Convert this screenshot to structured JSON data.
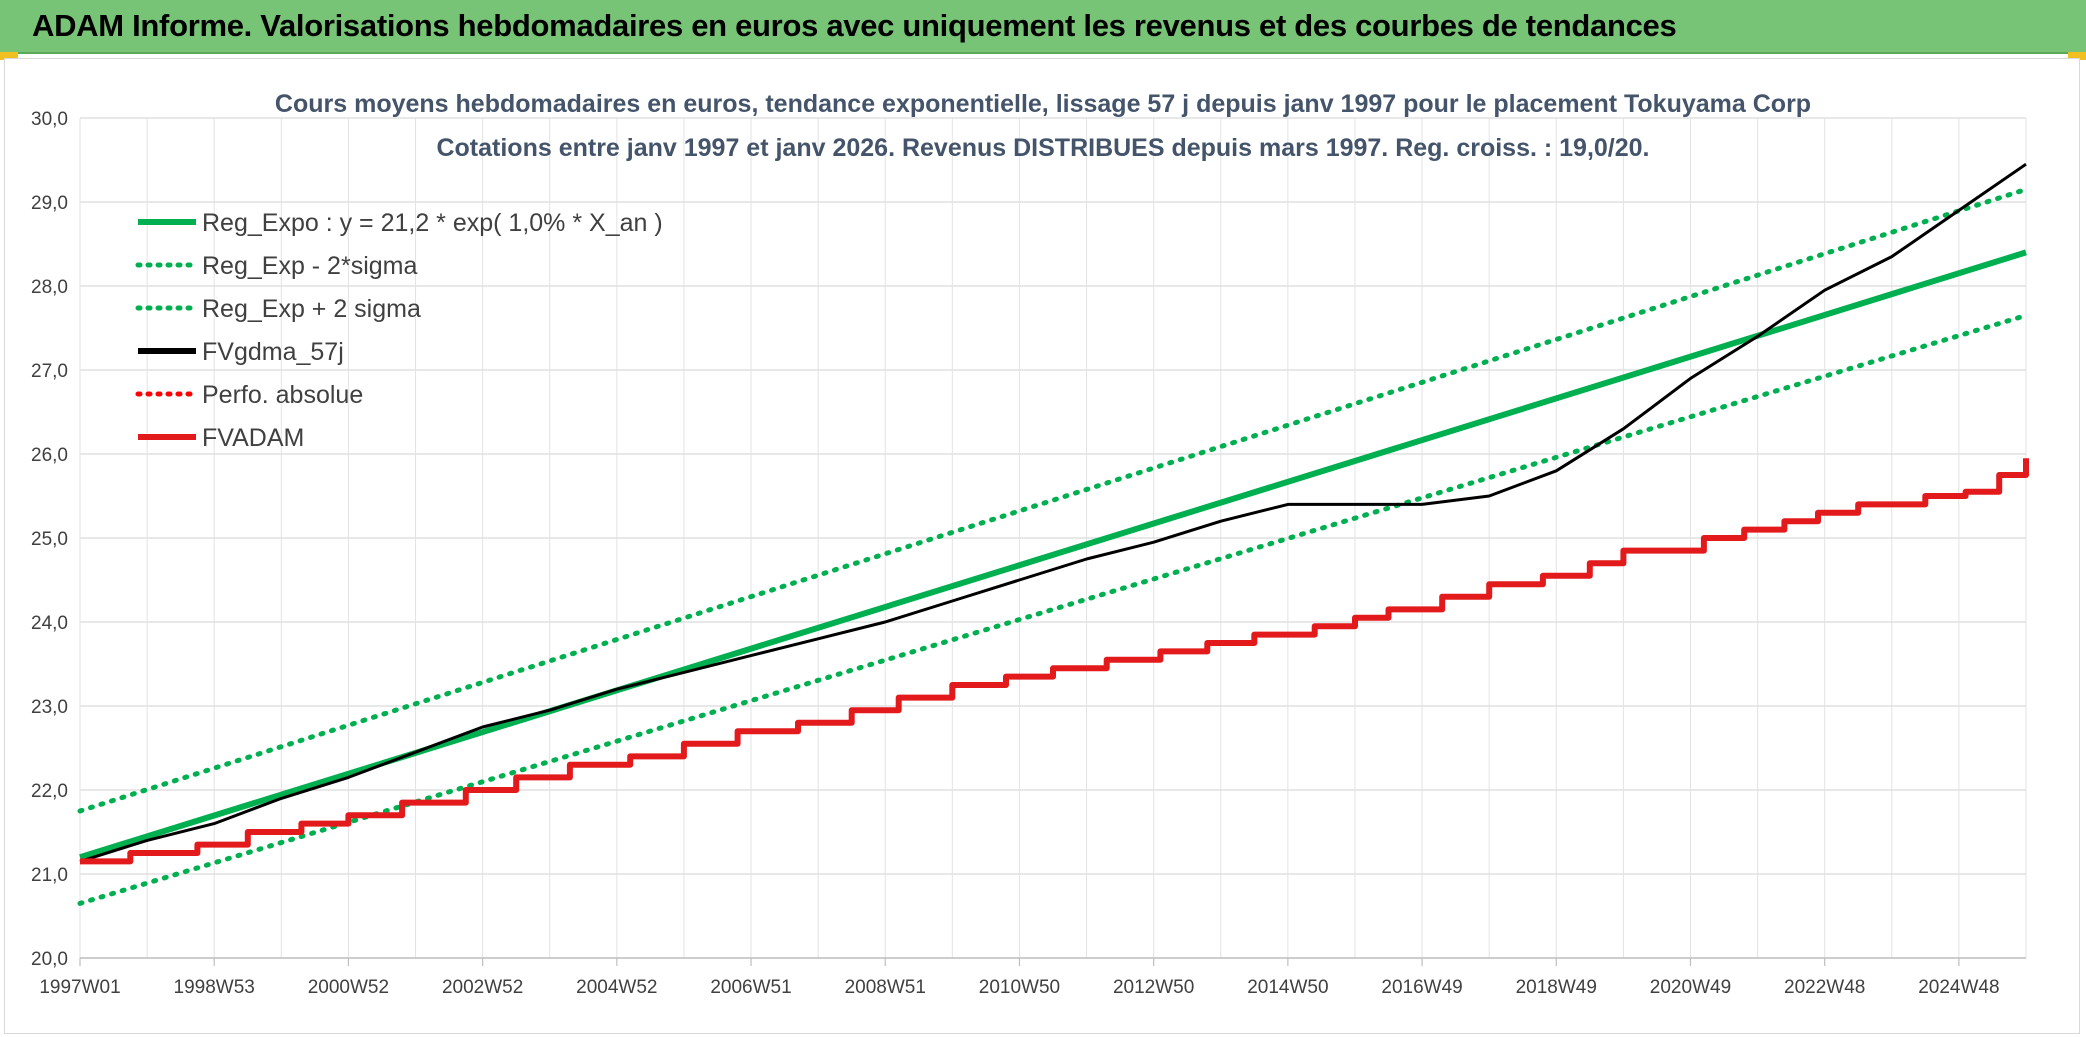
{
  "banner": {
    "title": "ADAM Informe. Valorisations hebdomadaires en euros avec uniquement les revenus et des courbes de tendances"
  },
  "chart_data": {
    "type": "line",
    "title_line1": "Cours moyens hebdomadaires en euros, tendance exponentielle, lissage 57 j depuis janv 1997 pour le placement Tokuyama Corp",
    "title_line2": "Cotations entre janv 1997 et janv 2026. Revenus DISTRIBUES depuis mars 1997. Reg. croiss. : 19,0/20.",
    "ylim": [
      20,
      30
    ],
    "yticks": [
      "20,0",
      "21,0",
      "22,0",
      "23,0",
      "24,0",
      "25,0",
      "26,0",
      "27,0",
      "28,0",
      "29,0",
      "30,0"
    ],
    "xlim": [
      1997.0,
      2026.0
    ],
    "xticks": [
      {
        "label": "1997W01",
        "x": 1997.0
      },
      {
        "label": "1998W53",
        "x": 1999.0
      },
      {
        "label": "2000W52",
        "x": 2001.0
      },
      {
        "label": "2002W52",
        "x": 2003.0
      },
      {
        "label": "2004W52",
        "x": 2005.0
      },
      {
        "label": "2006W51",
        "x": 2007.0
      },
      {
        "label": "2008W51",
        "x": 2009.0
      },
      {
        "label": "2010W50",
        "x": 2011.0
      },
      {
        "label": "2012W50",
        "x": 2013.0
      },
      {
        "label": "2014W50",
        "x": 2015.0
      },
      {
        "label": "2016W49",
        "x": 2017.0
      },
      {
        "label": "2018W49",
        "x": 2019.0
      },
      {
        "label": "2020W49",
        "x": 2021.0
      },
      {
        "label": "2022W48",
        "x": 2023.0
      },
      {
        "label": "2024W48",
        "x": 2025.0
      }
    ],
    "grid": true,
    "legend_position": "top-left",
    "series": [
      {
        "name": "Reg_Expo : y = 21,2 * exp( 1,0% *  X_an )",
        "color": "#00b050",
        "style": "solid",
        "x": [
          1997.0,
          2026.0
        ],
        "y": [
          21.2,
          28.4
        ]
      },
      {
        "name": "Reg_Exp - 2*sigma",
        "color": "#00b050",
        "style": "dotted",
        "x": [
          1997.0,
          2026.0
        ],
        "y": [
          20.65,
          27.65
        ]
      },
      {
        "name": "Reg_Exp + 2 sigma",
        "color": "#00b050",
        "style": "dotted",
        "x": [
          1997.0,
          2026.0
        ],
        "y": [
          21.75,
          29.15
        ]
      },
      {
        "name": "FVgdma_57j",
        "color": "#000000",
        "style": "solid",
        "x": [
          1997.0,
          1998.0,
          1999.0,
          2000.0,
          2001.0,
          2002.0,
          2003.0,
          2004.0,
          2005.0,
          2006.0,
          2007.0,
          2008.0,
          2009.0,
          2010.0,
          2011.0,
          2012.0,
          2013.0,
          2014.0,
          2015.0,
          2016.0,
          2017.0,
          2018.0,
          2019.0,
          2020.0,
          2021.0,
          2022.0,
          2023.0,
          2024.0,
          2025.0,
          2026.0
        ],
        "y": [
          21.15,
          21.4,
          21.6,
          21.9,
          22.15,
          22.45,
          22.75,
          22.95,
          23.2,
          23.4,
          23.6,
          23.8,
          24.0,
          24.25,
          24.5,
          24.75,
          24.95,
          25.2,
          25.4,
          25.4,
          25.4,
          25.5,
          25.8,
          26.3,
          26.9,
          27.4,
          27.95,
          28.35,
          28.9,
          29.45
        ]
      },
      {
        "name": "Perfo. absolue",
        "color": "#ff0000",
        "style": "dotted",
        "x": [],
        "y": []
      },
      {
        "name": "FVADAM",
        "color": "#e31a1c",
        "style": "solid-step",
        "x": [
          1997.0,
          1997.75,
          1998.75,
          1999.5,
          2000.3,
          2001.0,
          2001.8,
          2002.75,
          2003.5,
          2004.3,
          2005.2,
          2006.0,
          2006.8,
          2007.7,
          2008.5,
          2009.2,
          2010.0,
          2010.8,
          2011.5,
          2012.3,
          2013.1,
          2013.8,
          2014.5,
          2015.4,
          2016.0,
          2016.5,
          2017.3,
          2018.0,
          2018.8,
          2019.5,
          2020.0,
          2020.6,
          2021.2,
          2021.8,
          2022.4,
          2022.9,
          2023.5,
          2024.0,
          2024.5,
          2025.1,
          2025.6,
          2026.0
        ],
        "y": [
          21.15,
          21.25,
          21.35,
          21.5,
          21.6,
          21.7,
          21.85,
          22.0,
          22.15,
          22.3,
          22.4,
          22.55,
          22.7,
          22.8,
          22.95,
          23.1,
          23.25,
          23.35,
          23.45,
          23.55,
          23.65,
          23.75,
          23.85,
          23.95,
          24.05,
          24.15,
          24.3,
          24.45,
          24.55,
          24.7,
          24.85,
          24.85,
          25.0,
          25.1,
          25.2,
          25.3,
          25.4,
          25.4,
          25.5,
          25.55,
          25.75,
          25.95
        ]
      }
    ]
  }
}
